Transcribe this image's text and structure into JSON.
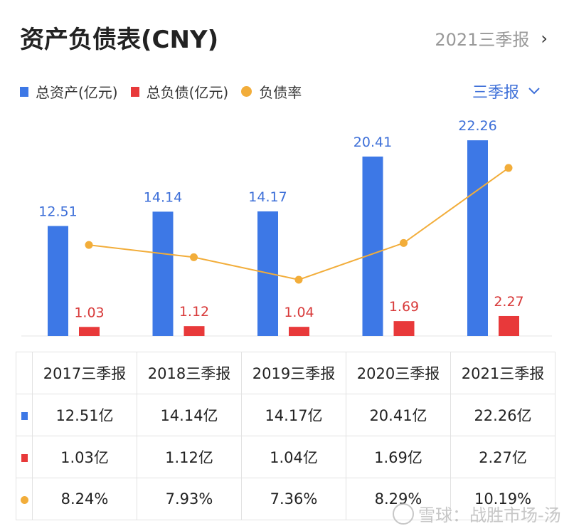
{
  "header": {
    "title": "资产负债表(CNY)",
    "period": "2021三季报"
  },
  "legend": [
    {
      "label": "总资产(亿元)",
      "color": "#3d78e6"
    },
    {
      "label": "总负债(亿元)",
      "color": "#e8393a"
    },
    {
      "label": "负债率",
      "color": "#f2ad3a"
    }
  ],
  "selector": {
    "label": "三季报"
  },
  "chart_data": {
    "type": "bar",
    "categories": [
      "2017三季报",
      "2018三季报",
      "2019三季报",
      "2020三季报",
      "2021三季报"
    ],
    "series": [
      {
        "name": "总资产(亿元)",
        "type": "bar",
        "color": "#3d78e6",
        "values": [
          12.51,
          14.14,
          14.17,
          20.41,
          22.26
        ],
        "labels": [
          "12.51",
          "14.14",
          "14.17",
          "20.41",
          "22.26"
        ]
      },
      {
        "name": "总负债(亿元)",
        "type": "bar",
        "color": "#e8393a",
        "values": [
          1.03,
          1.12,
          1.04,
          1.69,
          2.27
        ],
        "labels": [
          "1.03",
          "1.12",
          "1.04",
          "1.69",
          "2.27"
        ]
      },
      {
        "name": "负债率",
        "type": "line",
        "color": "#f2ad3a",
        "values": [
          8.24,
          7.93,
          7.36,
          8.29,
          10.19
        ]
      }
    ]
  },
  "table": {
    "headers": [
      "2017三季报",
      "2018三季报",
      "2019三季报",
      "2020三季报",
      "2021三季报"
    ],
    "rows": [
      {
        "marker": "square",
        "color": "#3d78e6",
        "cells": [
          "12.51亿",
          "14.14亿",
          "14.17亿",
          "20.41亿",
          "22.26亿"
        ]
      },
      {
        "marker": "square",
        "color": "#e8393a",
        "cells": [
          "1.03亿",
          "1.12亿",
          "1.04亿",
          "1.69亿",
          "2.27亿"
        ]
      },
      {
        "marker": "dot",
        "color": "#f2ad3a",
        "cells": [
          "8.24%",
          "7.93%",
          "7.36%",
          "8.29%",
          "10.19%"
        ]
      }
    ]
  },
  "watermark": "雪球：战胜市场-汤"
}
